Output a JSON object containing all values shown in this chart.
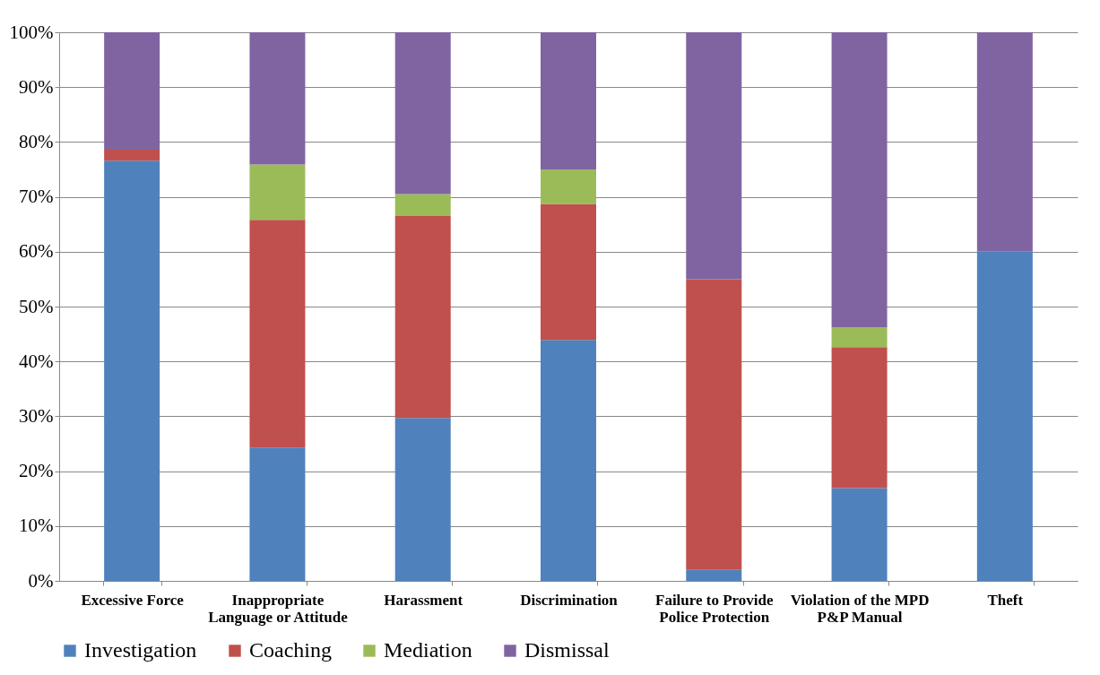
{
  "chart_data": {
    "type": "bar",
    "stacked": true,
    "categories": [
      "Excessive Force",
      "Inappropriate Language or Attitude",
      "Harassment",
      "Discrimination",
      "Failure to Provide Police Protection",
      "Violation of the MPD P&P Manual",
      "Theft"
    ],
    "series": [
      {
        "name": "Investigation",
        "color": "#4f81bd",
        "values": [
          76.6,
          24.3,
          29.7,
          43.9,
          2.0,
          16.9,
          60.0
        ]
      },
      {
        "name": "Coaching",
        "color": "#c0504d",
        "values": [
          2.0,
          41.5,
          36.8,
          24.8,
          53.0,
          25.7,
          0
        ]
      },
      {
        "name": "Mediation",
        "color": "#9bbb59",
        "values": [
          0,
          10.1,
          4.0,
          6.3,
          0,
          3.6,
          0
        ]
      },
      {
        "name": "Dismissal",
        "color": "#8064a2",
        "values": [
          21.4,
          24.1,
          29.5,
          25.0,
          45.0,
          53.8,
          40.0
        ]
      }
    ],
    "ylim": [
      0,
      100
    ],
    "yticks": [
      {
        "value": 0,
        "label": "0%"
      },
      {
        "value": 10,
        "label": "10%"
      },
      {
        "value": 20,
        "label": "20%"
      },
      {
        "value": 30,
        "label": "30%"
      },
      {
        "value": 40,
        "label": "40%"
      },
      {
        "value": 50,
        "label": "50%"
      },
      {
        "value": 60,
        "label": "60%"
      },
      {
        "value": 70,
        "label": "70%"
      },
      {
        "value": 80,
        "label": "80%"
      },
      {
        "value": 90,
        "label": "90%"
      },
      {
        "value": 100,
        "label": "100%"
      }
    ],
    "grid": "y",
    "legend": "bottom"
  }
}
